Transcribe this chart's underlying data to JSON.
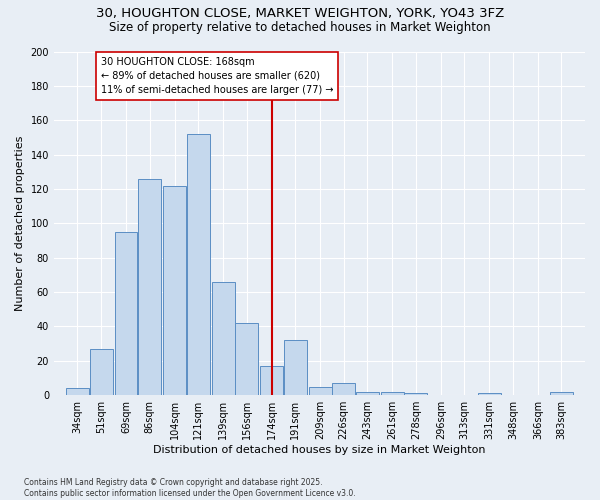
{
  "title1": "30, HOUGHTON CLOSE, MARKET WEIGHTON, YORK, YO43 3FZ",
  "title2": "Size of property relative to detached houses in Market Weighton",
  "xlabel": "Distribution of detached houses by size in Market Weighton",
  "ylabel": "Number of detached properties",
  "footer": "Contains HM Land Registry data © Crown copyright and database right 2025.\nContains public sector information licensed under the Open Government Licence v3.0.",
  "categories": [
    "34sqm",
    "51sqm",
    "69sqm",
    "86sqm",
    "104sqm",
    "121sqm",
    "139sqm",
    "156sqm",
    "174sqm",
    "191sqm",
    "209sqm",
    "226sqm",
    "243sqm",
    "261sqm",
    "278sqm",
    "296sqm",
    "313sqm",
    "331sqm",
    "348sqm",
    "366sqm",
    "383sqm"
  ],
  "bar_values": [
    4,
    27,
    95,
    126,
    122,
    152,
    66,
    42,
    17,
    32,
    5,
    7,
    2,
    2,
    1,
    0,
    0,
    1,
    0,
    0,
    2
  ],
  "bin_width": 17,
  "bar_color": "#c5d8ed",
  "bar_edge_color": "#5b8ec4",
  "vline_x": 174,
  "vline_color": "#cc0000",
  "annotation_text": "30 HOUGHTON CLOSE: 168sqm\n← 89% of detached houses are smaller (620)\n11% of semi-detached houses are larger (77) →",
  "annotation_box_color": "#cc0000",
  "ylim": [
    0,
    200
  ],
  "yticks": [
    0,
    20,
    40,
    60,
    80,
    100,
    120,
    140,
    160,
    180,
    200
  ],
  "bg_color": "#e8eef5",
  "grid_color": "#ffffff",
  "title_fontsize": 9.5,
  "subtitle_fontsize": 8.5,
  "axis_label_fontsize": 8,
  "tick_fontsize": 7,
  "annot_fontsize": 7
}
